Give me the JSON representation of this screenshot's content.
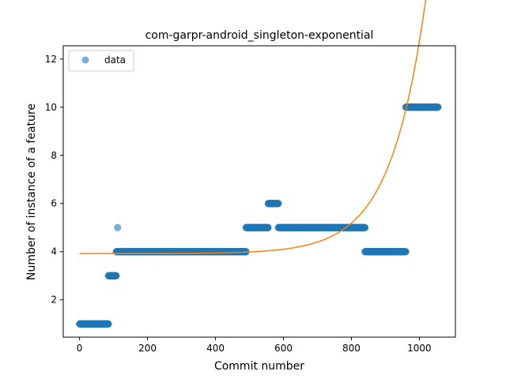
{
  "chart_data": {
    "type": "scatter",
    "title": "com-garpr-android_singleton-exponential",
    "xlabel": "Commit number",
    "ylabel": "Number of instance of a feature",
    "xlim": [
      -48,
      1106
    ],
    "ylim": [
      0.45,
      12.55
    ],
    "xticks": [
      0,
      200,
      400,
      600,
      800,
      1000
    ],
    "yticks": [
      2,
      4,
      6,
      8,
      10,
      12
    ],
    "grid": false,
    "legend": {
      "placement": "top-left",
      "entries": [
        "data"
      ]
    },
    "colors": {
      "data": "#1f77b4",
      "fit": "#ff7f0e"
    },
    "series": [
      {
        "name": "data",
        "kind": "scatter",
        "segments": [
          {
            "x_start": 0,
            "x_end": 85,
            "y": 1
          },
          {
            "x_start": 85,
            "x_end": 108,
            "y": 3
          },
          {
            "x_start": 112,
            "x_end": 112,
            "y": 5
          },
          {
            "x_start": 108,
            "x_end": 490,
            "y": 4
          },
          {
            "x_start": 490,
            "x_end": 555,
            "y": 5
          },
          {
            "x_start": 555,
            "x_end": 585,
            "y": 6
          },
          {
            "x_start": 585,
            "x_end": 840,
            "y": 5
          },
          {
            "x_start": 840,
            "x_end": 960,
            "y": 4
          },
          {
            "x_start": 960,
            "x_end": 1055,
            "y": 10
          }
        ]
      },
      {
        "kind": "line",
        "model": "exponential",
        "a": 3.92,
        "b": 0.00054,
        "c": 0.0097,
        "x_range": [
          0,
          1055
        ]
      }
    ]
  }
}
